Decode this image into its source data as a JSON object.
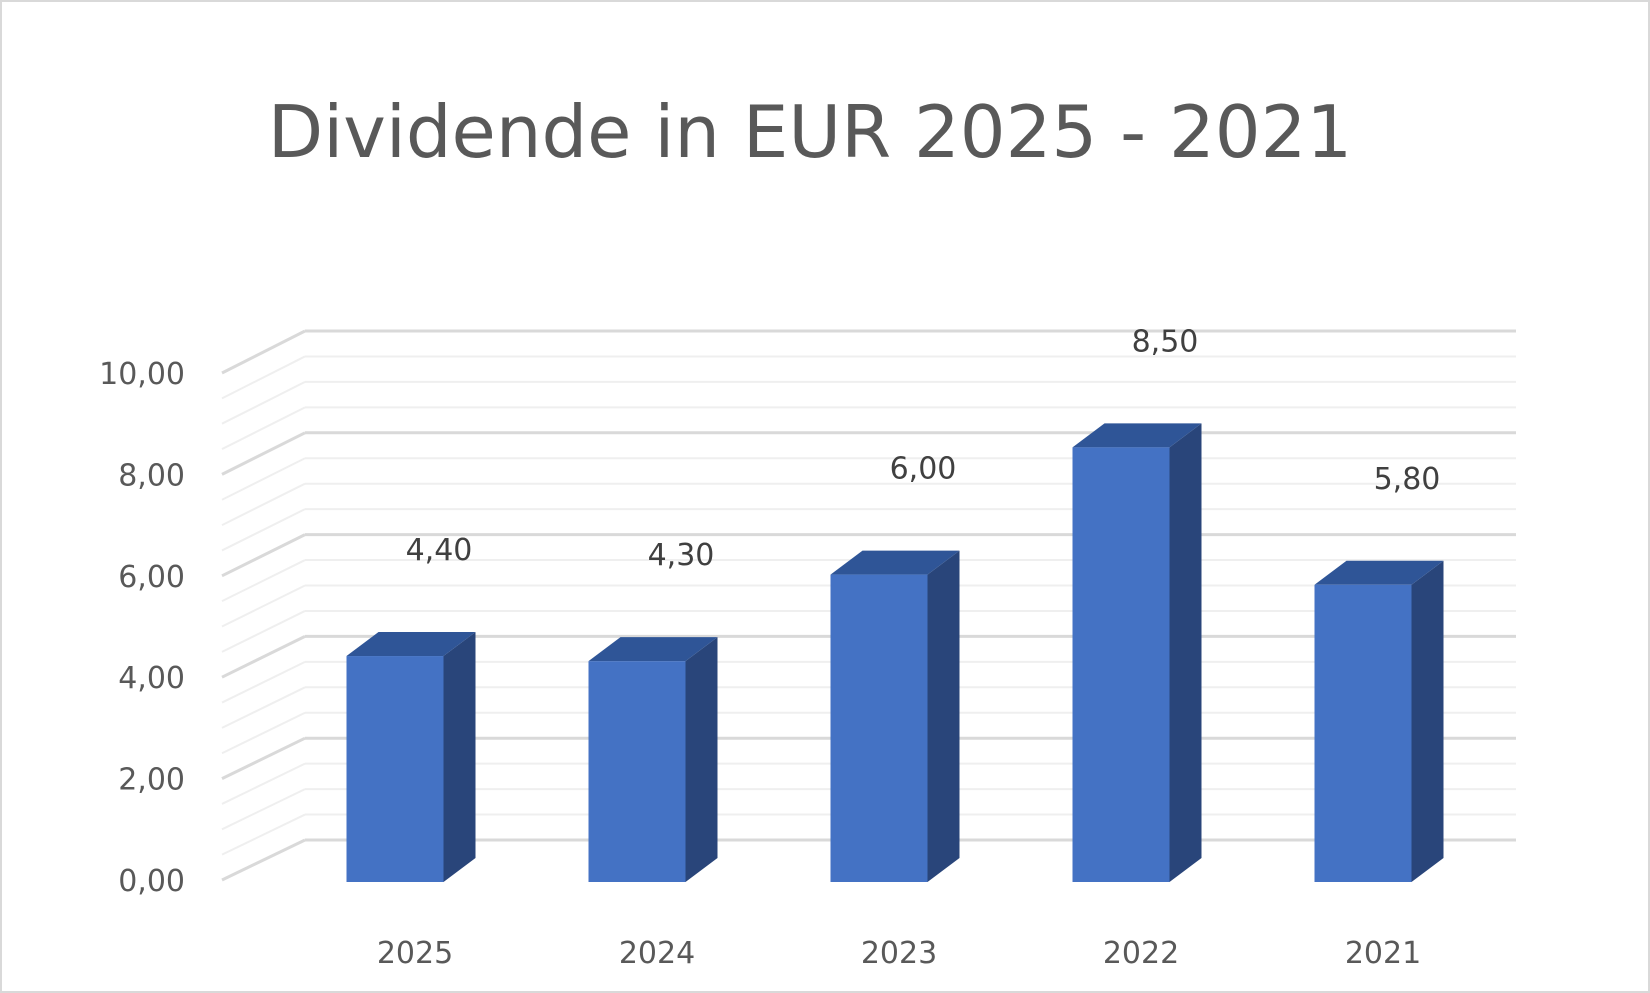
{
  "chart_data": {
    "type": "bar",
    "title": "Dividende in EUR 2025 - 2021",
    "categories": [
      "2025",
      "2024",
      "2023",
      "2022",
      "2021"
    ],
    "values": [
      4.4,
      4.3,
      6.0,
      8.5,
      5.8
    ],
    "data_labels": [
      "4,40",
      "4,30",
      "6,00",
      "8,50",
      "5,80"
    ],
    "y_ticks": [
      "0,00",
      "2,00",
      "4,00",
      "6,00",
      "8,00",
      "10,00"
    ],
    "ylim": [
      0,
      10
    ],
    "grid": true,
    "colors": {
      "bar_front": "#4472C4",
      "bar_top": "#2F5597",
      "bar_side": "#29457A",
      "grid_major": "#d9d9d9",
      "grid_minor": "#efefef"
    }
  }
}
